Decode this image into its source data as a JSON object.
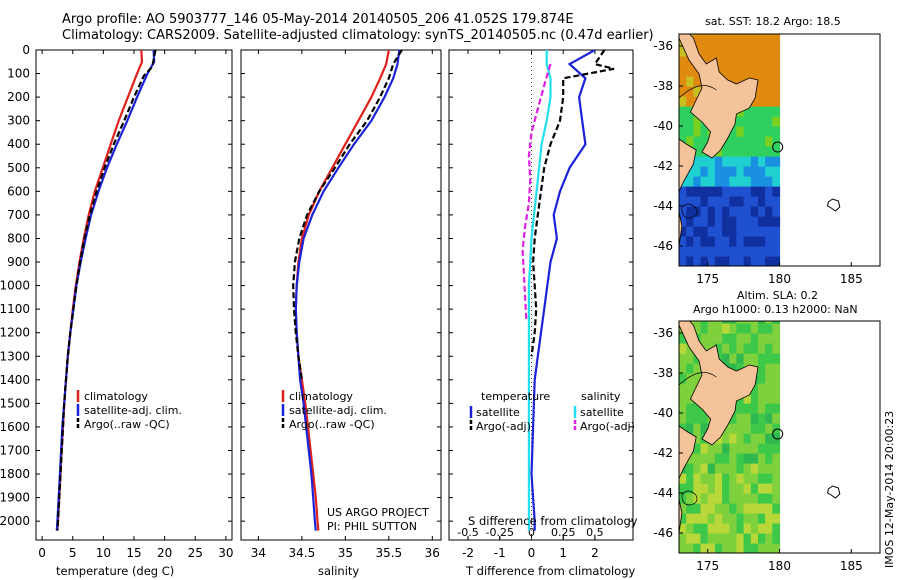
{
  "header": {
    "line1": "Argo profile: AO 5903777_146 05-May-2014 20140505_206 41.052S 179.874E",
    "line2": "Climatology: CARS2009. Satellite-adjusted climatology: synTS_20140505.nc (0.47d earlier)"
  },
  "side_stamp": "IMOS 12-May-2014 20:00:23",
  "colors": {
    "climatology": "#e0201b",
    "satellite": "#1a22d8",
    "argo": "#000000",
    "cyan": "#22e0f0",
    "magenta": "#e020e0",
    "land": "#f5c39a"
  },
  "chart_data": [
    {
      "type": "line",
      "id": "temperature",
      "xlabel": "temperature (deg C)",
      "xlim": [
        -1,
        31
      ],
      "xticks": [
        0,
        5,
        10,
        15,
        20,
        25,
        30
      ],
      "ylim": [
        2080,
        0
      ],
      "yticks": [
        0,
        100,
        200,
        300,
        400,
        500,
        600,
        700,
        800,
        900,
        1000,
        1100,
        1200,
        1300,
        1400,
        1500,
        1600,
        1700,
        1800,
        1900,
        2000
      ],
      "legend": [
        "climatology",
        "satellite-adj. clim.",
        "Argo(..raw -QC)"
      ],
      "series": [
        {
          "name": "climatology",
          "color": "#e0201b",
          "dash": "",
          "points": [
            [
              16.2,
              0
            ],
            [
              16.3,
              50
            ],
            [
              15.5,
              100
            ],
            [
              14.0,
              200
            ],
            [
              12.5,
              300
            ],
            [
              11.2,
              400
            ],
            [
              9.9,
              500
            ],
            [
              8.6,
              600
            ],
            [
              7.6,
              700
            ],
            [
              6.8,
              800
            ],
            [
              6.1,
              900
            ],
            [
              5.5,
              1000
            ],
            [
              5.0,
              1100
            ],
            [
              4.6,
              1200
            ],
            [
              4.2,
              1300
            ],
            [
              3.9,
              1400
            ],
            [
              3.6,
              1500
            ],
            [
              3.4,
              1600
            ],
            [
              3.2,
              1700
            ],
            [
              3.0,
              1800
            ],
            [
              2.8,
              1900
            ],
            [
              2.6,
              2000
            ],
            [
              2.5,
              2040
            ]
          ]
        },
        {
          "name": "satellite-adj. clim.",
          "color": "#1a22d8",
          "dash": "",
          "points": [
            [
              18.2,
              0
            ],
            [
              18.3,
              50
            ],
            [
              17.2,
              100
            ],
            [
              15.5,
              200
            ],
            [
              13.9,
              300
            ],
            [
              12.2,
              400
            ],
            [
              10.6,
              500
            ],
            [
              9.2,
              600
            ],
            [
              8.0,
              700
            ],
            [
              7.1,
              800
            ],
            [
              6.3,
              900
            ],
            [
              5.6,
              1000
            ],
            [
              5.1,
              1100
            ],
            [
              4.6,
              1200
            ],
            [
              4.2,
              1300
            ],
            [
              3.9,
              1400
            ],
            [
              3.6,
              1500
            ],
            [
              3.3,
              1600
            ],
            [
              3.1,
              1700
            ],
            [
              2.9,
              1800
            ],
            [
              2.7,
              1900
            ],
            [
              2.5,
              2000
            ],
            [
              2.4,
              2040
            ]
          ]
        },
        {
          "name": "Argo(..raw -QC)",
          "color": "#000000",
          "dash": "6,3",
          "points": [
            [
              18.5,
              0
            ],
            [
              18.0,
              70
            ],
            [
              16.6,
              110
            ],
            [
              15.0,
              200
            ],
            [
              13.4,
              300
            ],
            [
              11.7,
              400
            ],
            [
              10.2,
              500
            ],
            [
              8.9,
              600
            ],
            [
              7.8,
              700
            ],
            [
              6.9,
              800
            ],
            [
              6.2,
              900
            ],
            [
              5.6,
              1000
            ],
            [
              5.1,
              1100
            ],
            [
              4.6,
              1200
            ],
            [
              4.2,
              1300
            ],
            [
              3.9,
              1400
            ],
            [
              3.6,
              1500
            ],
            [
              3.4,
              1600
            ],
            [
              3.2,
              1700
            ],
            [
              3.0,
              1800
            ],
            [
              2.8,
              1900
            ],
            [
              2.6,
              2000
            ],
            [
              2.5,
              2040
            ]
          ]
        }
      ]
    },
    {
      "type": "line",
      "id": "salinity",
      "xlabel": "salinity",
      "xlim": [
        33.8,
        36.1
      ],
      "xticks": [
        34,
        34.5,
        35,
        35.5,
        36
      ],
      "ylim": [
        2080,
        0
      ],
      "legend": [
        "climatology",
        "satellite-adj. clim.",
        "Argo(..raw -QC)"
      ],
      "series": [
        {
          "name": "climatology",
          "color": "#e0201b",
          "dash": "",
          "points": [
            [
              35.5,
              0
            ],
            [
              35.47,
              60
            ],
            [
              35.4,
              120
            ],
            [
              35.3,
              200
            ],
            [
              35.15,
              300
            ],
            [
              35.0,
              400
            ],
            [
              34.85,
              500
            ],
            [
              34.7,
              600
            ],
            [
              34.58,
              700
            ],
            [
              34.5,
              800
            ],
            [
              34.46,
              900
            ],
            [
              34.44,
              1000
            ],
            [
              34.43,
              1100
            ],
            [
              34.44,
              1200
            ],
            [
              34.46,
              1300
            ],
            [
              34.5,
              1400
            ],
            [
              34.54,
              1500
            ],
            [
              34.57,
              1600
            ],
            [
              34.6,
              1700
            ],
            [
              34.63,
              1800
            ],
            [
              34.66,
              1900
            ],
            [
              34.68,
              2000
            ],
            [
              34.69,
              2040
            ]
          ]
        },
        {
          "name": "satellite-adj. clim.",
          "color": "#1a22d8",
          "dash": "",
          "points": [
            [
              35.62,
              0
            ],
            [
              35.6,
              60
            ],
            [
              35.55,
              120
            ],
            [
              35.45,
              200
            ],
            [
              35.3,
              300
            ],
            [
              35.1,
              400
            ],
            [
              34.92,
              500
            ],
            [
              34.75,
              600
            ],
            [
              34.62,
              700
            ],
            [
              34.52,
              800
            ],
            [
              34.47,
              900
            ],
            [
              34.44,
              1000
            ],
            [
              34.43,
              1100
            ],
            [
              34.44,
              1200
            ],
            [
              34.46,
              1300
            ],
            [
              34.48,
              1400
            ],
            [
              34.52,
              1500
            ],
            [
              34.55,
              1600
            ],
            [
              34.58,
              1700
            ],
            [
              34.61,
              1800
            ],
            [
              34.63,
              1900
            ],
            [
              34.65,
              2000
            ],
            [
              34.66,
              2040
            ]
          ]
        },
        {
          "name": "Argo(..raw -QC)",
          "color": "#000000",
          "dash": "6,3",
          "points": [
            [
              35.65,
              0
            ],
            [
              35.55,
              60
            ],
            [
              35.5,
              120
            ],
            [
              35.4,
              200
            ],
            [
              35.25,
              300
            ],
            [
              35.05,
              400
            ],
            [
              34.88,
              500
            ],
            [
              34.7,
              600
            ],
            [
              34.56,
              700
            ],
            [
              34.47,
              800
            ],
            [
              34.42,
              900
            ],
            [
              34.4,
              1000
            ],
            [
              34.41,
              1100
            ],
            [
              34.43,
              1200
            ],
            [
              34.46,
              1300
            ],
            [
              34.5,
              1400
            ]
          ]
        }
      ],
      "annotation": [
        "US ARGO PROJECT",
        "PI: PHIL SUTTON"
      ]
    },
    {
      "type": "line",
      "id": "difference",
      "xlabel": "T difference from climatology",
      "xlabel2": "S difference from climatology",
      "xlim": [
        -2.6,
        3.2
      ],
      "xticks": [
        -2,
        -1,
        0,
        1,
        2
      ],
      "x2lim": [
        -0.65,
        0.8
      ],
      "x2ticks": [
        -0.5,
        -0.25,
        0,
        0.25,
        0.5
      ],
      "x2ticklabels": [
        "-0.5",
        "-0.25",
        "0",
        "0.25",
        "0.5"
      ],
      "ylim": [
        2080,
        0
      ],
      "legend_left_title": "temperature",
      "legend_right_title": "salinity",
      "legend_left": [
        "satellite",
        "Argo(-adj)"
      ],
      "legend_right": [
        "satellite",
        "Argo(-adj)"
      ],
      "series": [
        {
          "name": "temperature satellite",
          "color": "#1a22d8",
          "dash": "",
          "axis": "T",
          "points": [
            [
              2.0,
              0
            ],
            [
              1.2,
              60
            ],
            [
              1.7,
              120
            ],
            [
              1.5,
              200
            ],
            [
              1.6,
              300
            ],
            [
              1.7,
              400
            ],
            [
              1.2,
              500
            ],
            [
              0.9,
              600
            ],
            [
              0.7,
              700
            ],
            [
              0.8,
              800
            ],
            [
              0.6,
              900
            ],
            [
              0.5,
              1000
            ],
            [
              0.4,
              1100
            ],
            [
              0.3,
              1200
            ],
            [
              0.2,
              1300
            ],
            [
              0.1,
              1400
            ],
            [
              0.05,
              1600
            ],
            [
              0.0,
              1800
            ],
            [
              0.1,
              2000
            ],
            [
              0.1,
              2040
            ]
          ]
        },
        {
          "name": "temperature Argo(-adj)",
          "color": "#000000",
          "dash": "6,3",
          "axis": "T",
          "points": [
            [
              2.3,
              0
            ],
            [
              2.0,
              60
            ],
            [
              2.6,
              80
            ],
            [
              1.0,
              120
            ],
            [
              1.0,
              200
            ],
            [
              0.9,
              300
            ],
            [
              0.6,
              400
            ],
            [
              0.4,
              500
            ],
            [
              0.3,
              600
            ],
            [
              0.2,
              700
            ],
            [
              0.1,
              800
            ],
            [
              0.05,
              900
            ],
            [
              0.1,
              1000
            ],
            [
              0.15,
              1100
            ],
            [
              0.1,
              1200
            ],
            [
              0.0,
              1300
            ]
          ]
        },
        {
          "name": "salinity satellite",
          "color": "#22e0f0",
          "dash": "",
          "axis": "S",
          "points": [
            [
              0.12,
              0
            ],
            [
              0.12,
              60
            ],
            [
              0.15,
              120
            ],
            [
              0.15,
              200
            ],
            [
              0.12,
              300
            ],
            [
              0.08,
              400
            ],
            [
              0.06,
              500
            ],
            [
              0.04,
              600
            ],
            [
              0.02,
              700
            ],
            [
              0.0,
              800
            ],
            [
              -0.01,
              900
            ],
            [
              -0.02,
              1000
            ],
            [
              -0.02,
              1100
            ],
            [
              -0.02,
              1200
            ],
            [
              -0.02,
              1400
            ],
            [
              -0.02,
              1600
            ],
            [
              -0.02,
              1800
            ],
            [
              -0.02,
              2000
            ],
            [
              -0.02,
              2040
            ]
          ]
        },
        {
          "name": "salinity Argo(-adj)",
          "color": "#e020e0",
          "dash": "6,3",
          "axis": "S",
          "points": [
            [
              0.15,
              60
            ],
            [
              0.1,
              150
            ],
            [
              0.05,
              250
            ],
            [
              0.0,
              350
            ],
            [
              -0.02,
              450
            ],
            [
              -0.01,
              550
            ],
            [
              -0.02,
              650
            ],
            [
              -0.05,
              750
            ],
            [
              -0.07,
              850
            ],
            [
              -0.06,
              950
            ],
            [
              -0.05,
              1050
            ],
            [
              -0.04,
              1150
            ]
          ]
        }
      ]
    },
    {
      "type": "heatmap",
      "id": "sst-map",
      "title": "sat. SST: 18.2 Argo: 18.5",
      "xlim": [
        173,
        187
      ],
      "xticks": [
        175,
        180,
        185
      ],
      "ylim": [
        -47,
        -35.4
      ],
      "yticks": [
        -36,
        -38,
        -40,
        -42,
        -44,
        -46
      ],
      "argo_position": {
        "lon": 179.874,
        "lat": -41.052
      }
    },
    {
      "type": "heatmap",
      "id": "sla-map",
      "title": "Altim. SLA: 0.2",
      "subtitle": "Argo h1000: 0.13 h2000: NaN",
      "xlim": [
        173,
        187
      ],
      "xticks": [
        175,
        180,
        185
      ],
      "ylim": [
        -47,
        -35.4
      ],
      "yticks": [
        -36,
        -38,
        -40,
        -42,
        -44,
        -46
      ],
      "argo_position": {
        "lon": 179.874,
        "lat": -41.052
      }
    }
  ]
}
